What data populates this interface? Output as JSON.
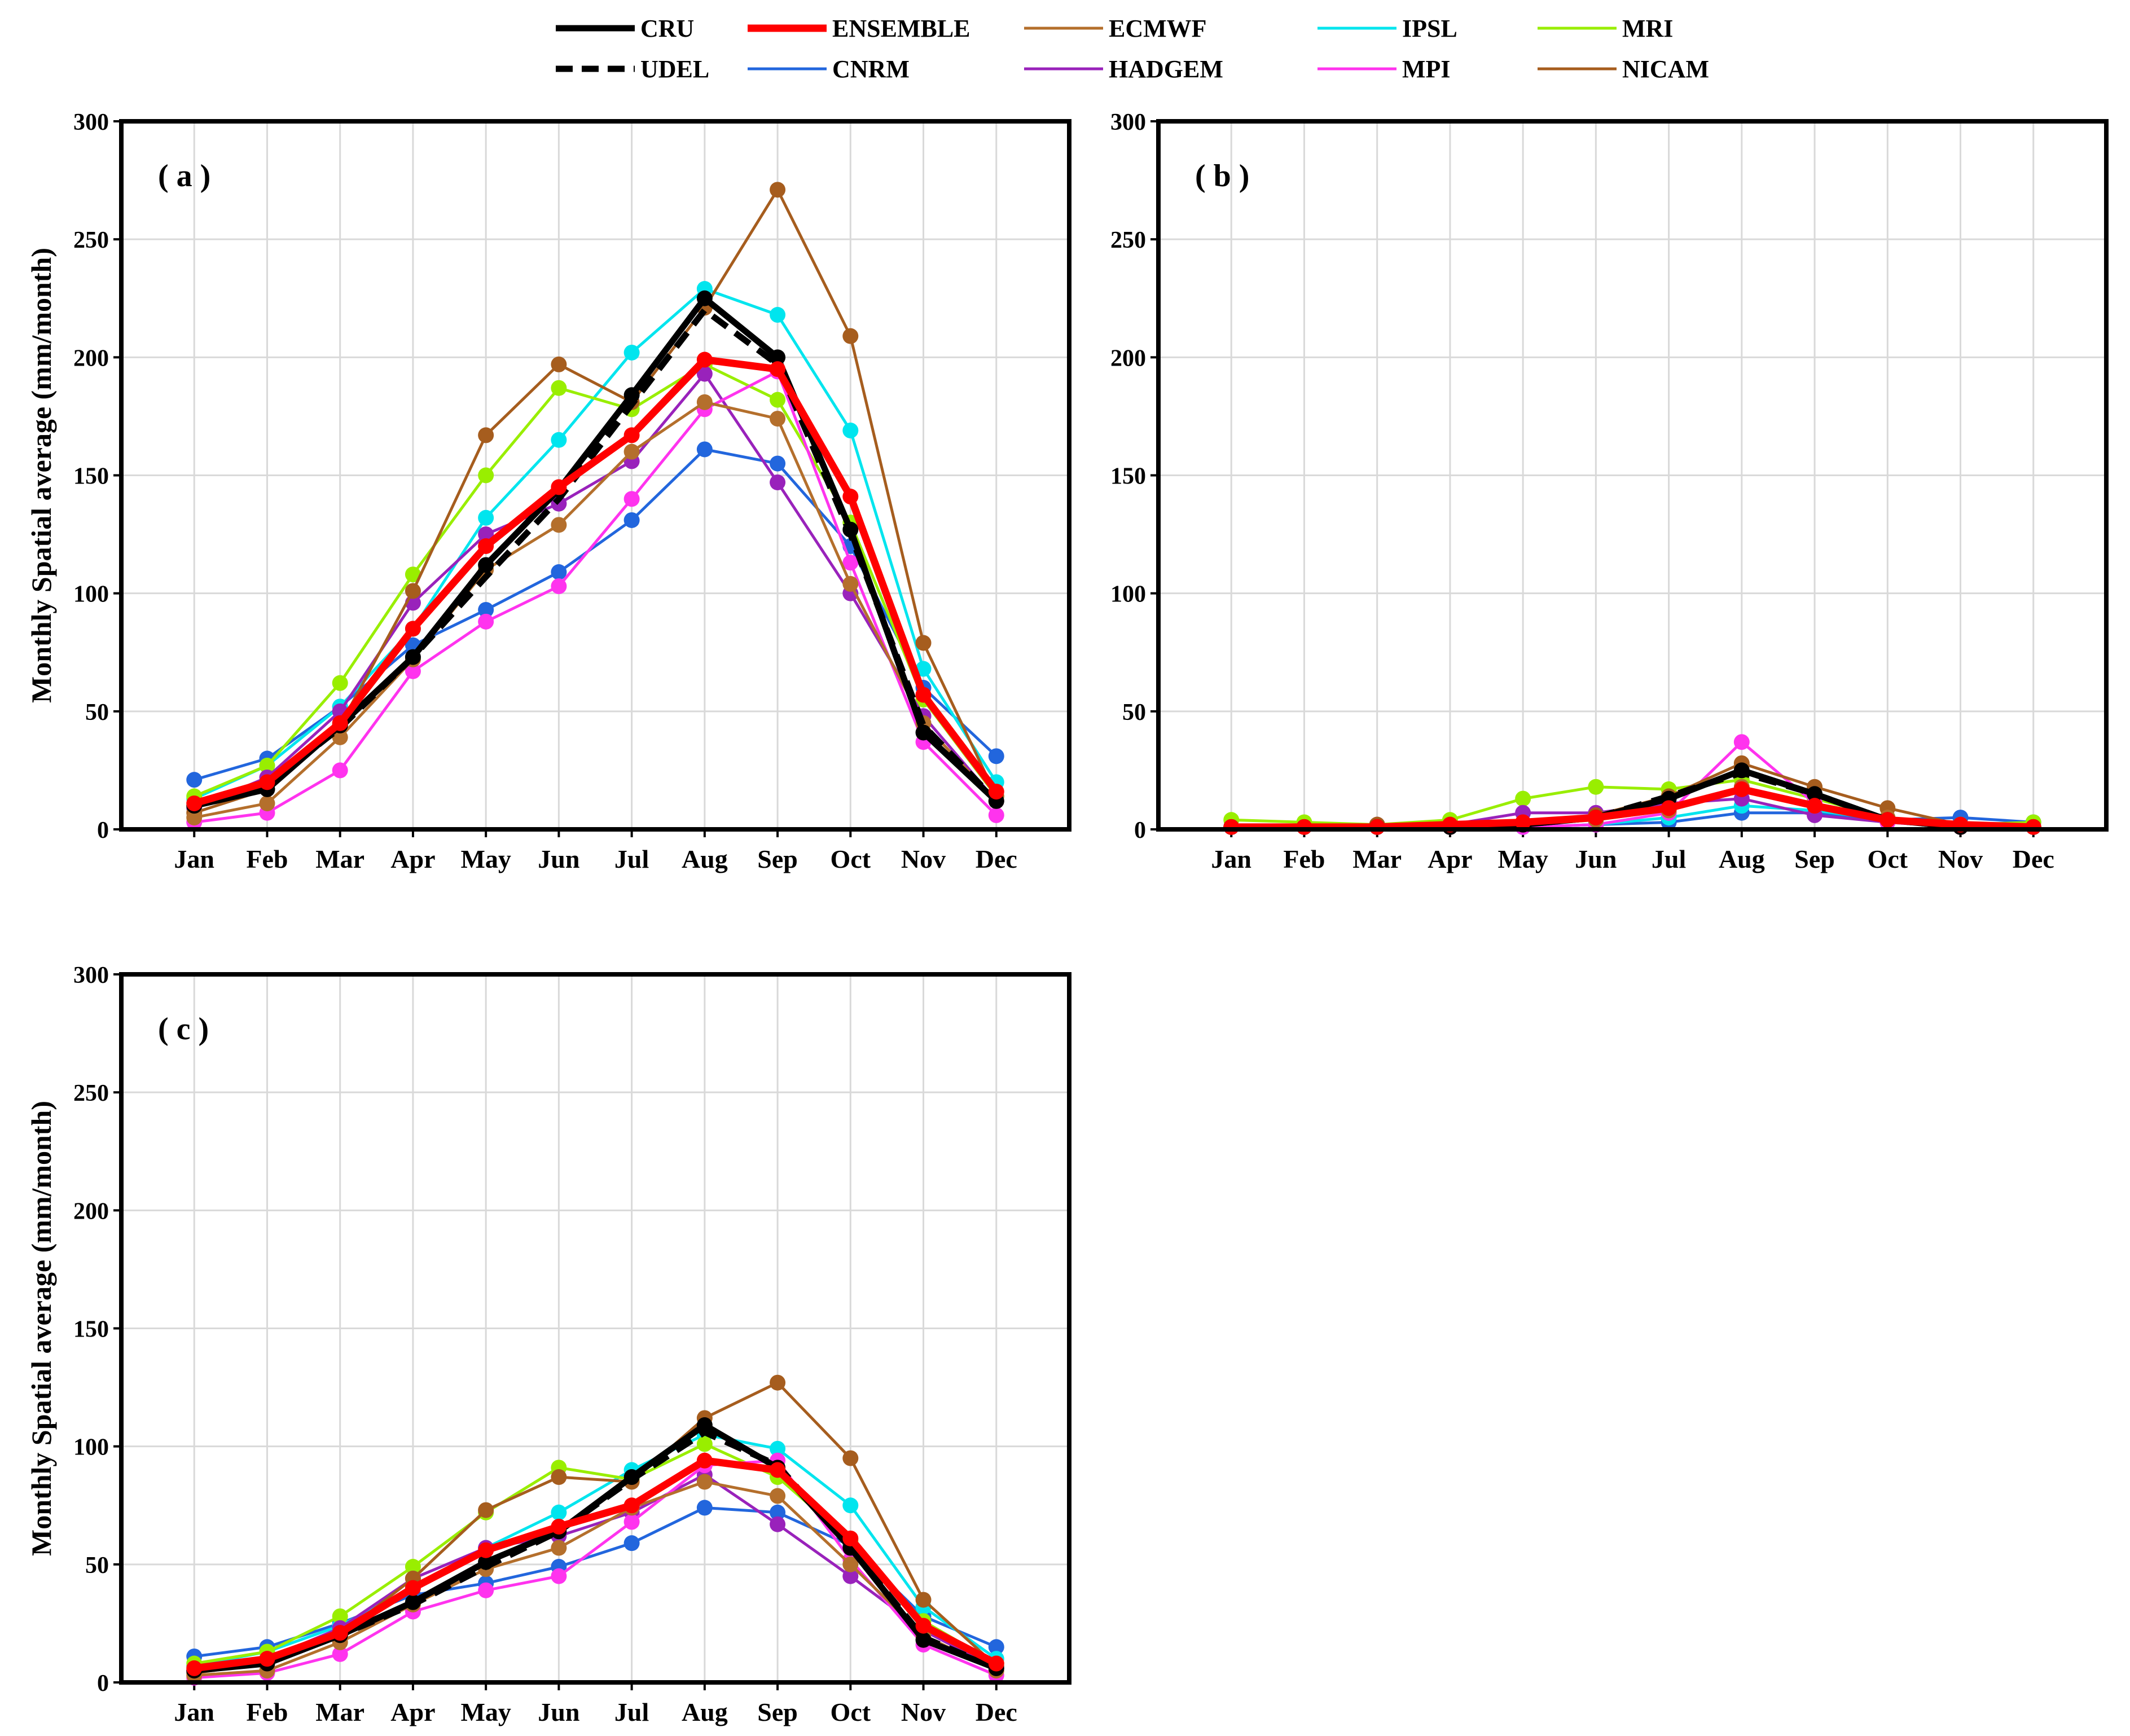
{
  "legend": [
    {
      "name": "CRU",
      "color": "#000000",
      "dash": false,
      "width": 11
    },
    {
      "name": "ENSEMBLE",
      "color": "#ff0000",
      "dash": false,
      "width": 13
    },
    {
      "name": "ECMWF",
      "color": "#b46f2c",
      "dash": false,
      "width": 5
    },
    {
      "name": "IPSL",
      "color": "#00e5ee",
      "dash": false,
      "width": 5
    },
    {
      "name": "MRI",
      "color": "#99ee00",
      "dash": false,
      "width": 5
    },
    {
      "name": "UDEL",
      "color": "#000000",
      "dash": true,
      "width": 11
    },
    {
      "name": "CNRM",
      "color": "#2266dd",
      "dash": false,
      "width": 5
    },
    {
      "name": "HADGEM",
      "color": "#9922bb",
      "dash": false,
      "width": 5
    },
    {
      "name": "MPI",
      "color": "#ff33ee",
      "dash": false,
      "width": 5
    },
    {
      "name": "NICAM",
      "color": "#a65d1e",
      "dash": false,
      "width": 5
    }
  ],
  "chart_data": [
    {
      "type": "line",
      "label": "( a )",
      "ylabel": "Monthly Spatial average (mm/month)",
      "categories": [
        "Jan",
        "Feb",
        "Mar",
        "Apr",
        "May",
        "Jun",
        "Jul",
        "Aug",
        "Sep",
        "Oct",
        "Nov",
        "Dec"
      ],
      "ylim": [
        0,
        300
      ],
      "yticks": [
        0,
        50,
        100,
        150,
        200,
        250,
        300
      ],
      "grid": true,
      "series": [
        {
          "name": "CNRM",
          "markers": true,
          "values": [
            21,
            30,
            52,
            78,
            93,
            109,
            131,
            161,
            155,
            120,
            60,
            31
          ]
        },
        {
          "name": "IPSL",
          "markers": true,
          "values": [
            13,
            27,
            52,
            85,
            132,
            165,
            202,
            229,
            218,
            169,
            68,
            20
          ]
        },
        {
          "name": "MRI",
          "markers": true,
          "values": [
            14,
            27,
            62,
            108,
            150,
            187,
            178,
            197,
            182,
            130,
            55,
            14
          ]
        },
        {
          "name": "HADGEM",
          "markers": true,
          "values": [
            9,
            22,
            50,
            96,
            125,
            138,
            156,
            193,
            147,
            100,
            48,
            12
          ]
        },
        {
          "name": "MPI",
          "markers": true,
          "values": [
            3,
            7,
            25,
            67,
            88,
            103,
            140,
            178,
            194,
            113,
            37,
            6
          ]
        },
        {
          "name": "NICAM",
          "markers": true,
          "values": [
            7,
            17,
            44,
            101,
            167,
            197,
            181,
            221,
            271,
            209,
            79,
            14
          ]
        },
        {
          "name": "ECMWF",
          "markers": true,
          "values": [
            5,
            11,
            39,
            72,
            110,
            129,
            160,
            181,
            174,
            104,
            45,
            12
          ]
        },
        {
          "name": "UDEL",
          "markers": false,
          "values": [
            10,
            19,
            43,
            73,
            107,
            140,
            180,
            220,
            197,
            125,
            44,
            12
          ]
        },
        {
          "name": "CRU",
          "markers": true,
          "values": [
            10,
            17,
            44,
            73,
            112,
            144,
            184,
            225,
            200,
            127,
            41,
            12
          ]
        },
        {
          "name": "ENSEMBLE",
          "markers": true,
          "values": [
            11,
            20,
            45,
            85,
            120,
            145,
            167,
            199,
            195,
            141,
            57,
            16
          ]
        }
      ]
    },
    {
      "type": "line",
      "label": "( b )",
      "ylabel": "",
      "categories": [
        "Jan",
        "Feb",
        "Mar",
        "Apr",
        "May",
        "Jun",
        "Jul",
        "Aug",
        "Sep",
        "Oct",
        "Nov",
        "Dec"
      ],
      "ylim": [
        0,
        300
      ],
      "yticks": [
        0,
        50,
        100,
        150,
        200,
        250,
        300
      ],
      "grid": true,
      "series": [
        {
          "name": "CNRM",
          "markers": true,
          "values": [
            1,
            1,
            1,
            1,
            1,
            2,
            3,
            7,
            7,
            4,
            5,
            3
          ]
        },
        {
          "name": "IPSL",
          "markers": true,
          "values": [
            1,
            1,
            1,
            1,
            1,
            2,
            5,
            10,
            8,
            4,
            2,
            1
          ]
        },
        {
          "name": "MRI",
          "markers": true,
          "values": [
            4,
            3,
            2,
            4,
            13,
            18,
            17,
            21,
            13,
            5,
            2,
            3
          ]
        },
        {
          "name": "HADGEM",
          "markers": true,
          "values": [
            1,
            1,
            2,
            2,
            7,
            7,
            11,
            13,
            6,
            3,
            1,
            1
          ]
        },
        {
          "name": "MPI",
          "markers": true,
          "values": [
            1,
            1,
            1,
            1,
            1,
            2,
            7,
            37,
            11,
            3,
            1,
            1
          ]
        },
        {
          "name": "NICAM",
          "markers": true,
          "values": [
            1,
            1,
            2,
            2,
            3,
            6,
            14,
            28,
            18,
            9,
            2,
            1
          ]
        },
        {
          "name": "ECMWF",
          "markers": true,
          "values": [
            1,
            1,
            1,
            1,
            2,
            4,
            8,
            18,
            10,
            5,
            1,
            1
          ]
        },
        {
          "name": "UDEL",
          "markers": false,
          "values": [
            1,
            1,
            1,
            1,
            2,
            5,
            14,
            24,
            15,
            4,
            1,
            1
          ]
        },
        {
          "name": "CRU",
          "markers": true,
          "values": [
            1,
            1,
            1,
            1,
            2,
            5,
            13,
            25,
            15,
            4,
            1,
            1
          ]
        },
        {
          "name": "ENSEMBLE",
          "markers": true,
          "values": [
            1,
            1,
            1,
            2,
            3,
            5,
            9,
            17,
            10,
            4,
            2,
            1
          ]
        }
      ]
    },
    {
      "type": "line",
      "label": "( c )",
      "ylabel": "Monthly Spatial average (mm/month)",
      "categories": [
        "Jan",
        "Feb",
        "Mar",
        "Apr",
        "May",
        "Jun",
        "Jul",
        "Aug",
        "Sep",
        "Oct",
        "Nov",
        "Dec"
      ],
      "ylim": [
        0,
        300
      ],
      "yticks": [
        0,
        50,
        100,
        150,
        200,
        250,
        300
      ],
      "grid": true,
      "series": [
        {
          "name": "CNRM",
          "markers": true,
          "values": [
            11,
            15,
            25,
            37,
            42,
            49,
            59,
            74,
            72,
            58,
            28,
            15
          ]
        },
        {
          "name": "IPSL",
          "markers": true,
          "values": [
            7,
            13,
            24,
            40,
            57,
            72,
            90,
            105,
            99,
            75,
            32,
            10
          ]
        },
        {
          "name": "MRI",
          "markers": true,
          "values": [
            8,
            13,
            28,
            49,
            72,
            91,
            86,
            101,
            87,
            60,
            26,
            8
          ]
        },
        {
          "name": "HADGEM",
          "markers": true,
          "values": [
            5,
            10,
            23,
            44,
            57,
            62,
            72,
            88,
            67,
            45,
            22,
            6
          ]
        },
        {
          "name": "MPI",
          "markers": true,
          "values": [
            2,
            4,
            12,
            30,
            39,
            45,
            68,
            92,
            94,
            52,
            16,
            3
          ]
        },
        {
          "name": "NICAM",
          "markers": true,
          "values": [
            4,
            8,
            20,
            44,
            73,
            87,
            85,
            112,
            127,
            95,
            35,
            7
          ]
        },
        {
          "name": "ECMWF",
          "markers": true,
          "values": [
            3,
            5,
            17,
            33,
            48,
            57,
            74,
            85,
            79,
            50,
            20,
            5
          ]
        },
        {
          "name": "UDEL",
          "markers": false,
          "values": [
            5,
            9,
            20,
            33,
            49,
            64,
            86,
            106,
            92,
            57,
            19,
            6
          ]
        },
        {
          "name": "CRU",
          "markers": true,
          "values": [
            5,
            8,
            20,
            34,
            51,
            64,
            87,
            109,
            91,
            57,
            18,
            6
          ]
        },
        {
          "name": "ENSEMBLE",
          "markers": true,
          "values": [
            6,
            10,
            21,
            40,
            56,
            66,
            75,
            94,
            90,
            61,
            24,
            8
          ]
        }
      ]
    }
  ]
}
